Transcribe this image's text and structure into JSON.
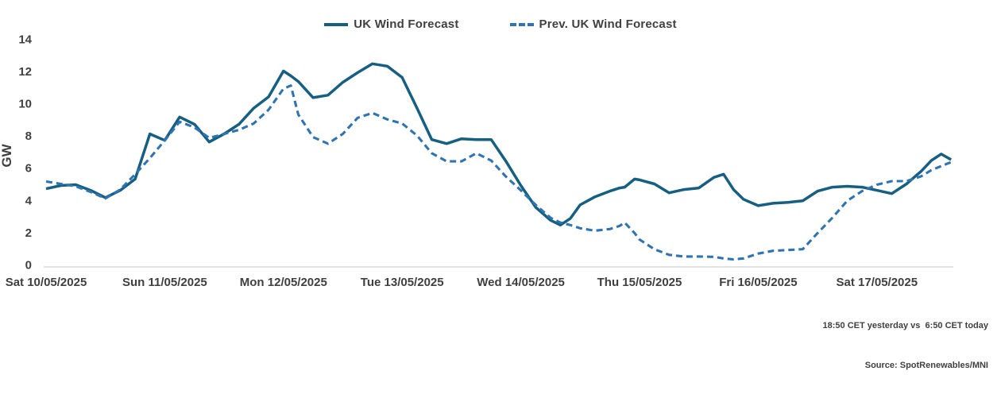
{
  "legend": {
    "items": [
      {
        "label": "UK Wind Forecast",
        "line_style": "solid",
        "color": "#156082"
      },
      {
        "label": "Prev. UK Wind Forecast",
        "line_style": "dashed",
        "color": "#2E74B5"
      }
    ]
  },
  "footer": {
    "line1": "18:50 CET yesterday vs  6:50 CET today",
    "line2": "Source: SpotRenewables/MNI"
  },
  "chart_data": {
    "type": "line",
    "title": "",
    "ylabel": "GW",
    "ylim": [
      0,
      14
    ],
    "yticks": [
      0,
      2,
      4,
      6,
      8,
      10,
      12,
      14
    ],
    "grid": false,
    "legend_position": "top-center",
    "axis_color": "#D9D9D9",
    "text_color": "#404040",
    "x_unit": "hours from Sat 10/05/2025 00:00",
    "x_tick_labels": [
      "Sat 10/05/2025",
      "Sun 11/05/2025",
      "Mon 12/05/2025",
      "Tue 13/05/2025",
      "Wed 14/05/2025",
      "Thu 15/05/2025",
      "Fri 16/05/2025",
      "Sat 17/05/2025"
    ],
    "x_tick_hours": [
      0,
      24,
      48,
      72,
      96,
      120,
      144,
      168
    ],
    "x": [
      0,
      3,
      6,
      9,
      12,
      15,
      18,
      21,
      24,
      27,
      30,
      33,
      36,
      39,
      42,
      45,
      48,
      49.5,
      51,
      54,
      57,
      60,
      63,
      66,
      69,
      72,
      75,
      78,
      81,
      84,
      87,
      90,
      93,
      96,
      99,
      102,
      104,
      106,
      108,
      111,
      114,
      116,
      117,
      119,
      120,
      123,
      126,
      129,
      132,
      135,
      137,
      139,
      141,
      144,
      147,
      150,
      153,
      156,
      159,
      162,
      165,
      168,
      171,
      174,
      177,
      179,
      181,
      183
    ],
    "series": [
      {
        "name": "UK Wind Forecast",
        "line_style": "solid",
        "color": "#156082",
        "values": [
          4.7,
          4.9,
          4.95,
          4.6,
          4.15,
          4.6,
          5.3,
          8.1,
          7.7,
          9.15,
          8.7,
          7.6,
          8.1,
          8.7,
          9.7,
          10.4,
          12.0,
          11.7,
          11.35,
          10.35,
          10.5,
          11.3,
          11.9,
          12.45,
          12.3,
          11.6,
          9.7,
          7.75,
          7.5,
          7.8,
          7.75,
          7.75,
          6.4,
          4.9,
          3.55,
          2.75,
          2.45,
          2.85,
          3.7,
          4.2,
          4.55,
          4.75,
          4.8,
          5.3,
          5.25,
          5.0,
          4.45,
          4.65,
          4.75,
          5.4,
          5.6,
          4.65,
          4.05,
          3.65,
          3.8,
          3.85,
          3.95,
          4.55,
          4.8,
          4.85,
          4.8,
          4.6,
          4.4,
          5.0,
          5.8,
          6.45,
          6.85,
          6.5
        ]
      },
      {
        "name": "Prev. UK Wind Forecast",
        "line_style": "dashed",
        "color": "#2E74B5",
        "values": [
          5.15,
          5.0,
          4.85,
          4.5,
          4.1,
          4.65,
          5.6,
          6.6,
          7.7,
          8.85,
          8.5,
          7.85,
          8.1,
          8.35,
          8.75,
          9.6,
          10.9,
          11.1,
          9.3,
          7.9,
          7.5,
          8.1,
          9.1,
          9.4,
          9.0,
          8.75,
          8.0,
          6.9,
          6.4,
          6.4,
          6.9,
          6.45,
          5.45,
          4.6,
          3.7,
          2.9,
          2.6,
          2.45,
          2.25,
          2.1,
          2.2,
          2.4,
          2.6,
          1.95,
          1.55,
          0.95,
          0.6,
          0.5,
          0.5,
          0.48,
          0.38,
          0.32,
          0.38,
          0.68,
          0.85,
          0.9,
          0.95,
          1.95,
          2.9,
          3.95,
          4.55,
          4.95,
          5.17,
          5.17,
          5.48,
          5.85,
          6.1,
          6.35
        ]
      }
    ]
  }
}
